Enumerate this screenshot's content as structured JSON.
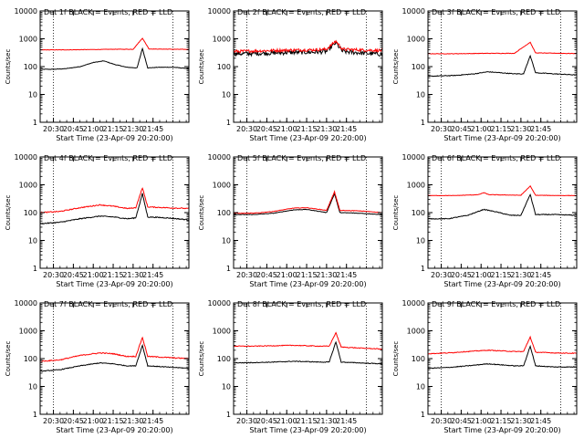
{
  "chart_data": [
    {
      "type": "line",
      "title": "Det 1f BLACK = Events, RED = LLD",
      "xlabel": "Start Time (23-Apr-09 20:20:00)",
      "ylabel": "Counts/sec",
      "ylog": true,
      "ylim": [
        1,
        10000
      ],
      "xlim": [
        0,
        112
      ],
      "xtick_labels": [
        "20:30",
        "20:45",
        "21:00",
        "21:15",
        "21:30",
        "21:45"
      ],
      "ytick_labels": [
        "1",
        "10",
        "100",
        "1000",
        "10000"
      ],
      "series": [
        {
          "color": "#000000",
          "base": 80,
          "bump": [
            45,
            2.1
          ],
          "peak": 450,
          "noise": 0.02,
          "points": [
            [
              0,
              80
            ],
            [
              10,
              80
            ],
            [
              20,
              85
            ],
            [
              30,
              100
            ],
            [
              40,
              140
            ],
            [
              48,
              160
            ],
            [
              56,
              120
            ],
            [
              65,
              95
            ],
            [
              73,
              90
            ],
            [
              77,
              450
            ],
            [
              81,
              90
            ],
            [
              90,
              95
            ],
            [
              100,
              95
            ],
            [
              112,
              85
            ]
          ]
        },
        {
          "color": "#ff0000",
          "base": 400,
          "peak": 1050,
          "noise": 0.015,
          "points": [
            [
              0,
              400
            ],
            [
              20,
              400
            ],
            [
              40,
              410
            ],
            [
              55,
              420
            ],
            [
              70,
              420
            ],
            [
              77,
              1050
            ],
            [
              82,
              430
            ],
            [
              100,
              420
            ],
            [
              112,
              415
            ]
          ]
        }
      ]
    },
    {
      "type": "line",
      "title": "Det 2f BLACK = Events, RED = LLD",
      "xlabel": "Start Time (23-Apr-09 20:20:00)",
      "ylabel": "Counts/sec",
      "ylog": true,
      "ylim": [
        1,
        10000
      ],
      "xlim": [
        0,
        112
      ],
      "xtick_labels": [
        "20:30",
        "20:45",
        "21:00",
        "21:15",
        "21:30",
        "21:45"
      ],
      "ytick_labels": [
        "1",
        "10",
        "100",
        "1000",
        "10000"
      ],
      "series": [
        {
          "color": "#000000",
          "noise": 0.18,
          "points": [
            [
              0,
              290
            ],
            [
              20,
              300
            ],
            [
              40,
              320
            ],
            [
              60,
              330
            ],
            [
              70,
              350
            ],
            [
              77,
              720
            ],
            [
              82,
              350
            ],
            [
              100,
              300
            ],
            [
              112,
              280
            ]
          ]
        },
        {
          "color": "#ff0000",
          "noise": 0.12,
          "points": [
            [
              0,
              350
            ],
            [
              20,
              370
            ],
            [
              40,
              390
            ],
            [
              60,
              400
            ],
            [
              70,
              420
            ],
            [
              77,
              830
            ],
            [
              82,
              420
            ],
            [
              100,
              390
            ],
            [
              112,
              380
            ]
          ]
        }
      ]
    },
    {
      "type": "line",
      "title": "Det 3f BLACK = Events, RED = LLD",
      "xlabel": "Start Time (23-Apr-09 20:20:00)",
      "ylabel": "Counts/sec",
      "ylog": true,
      "ylim": [
        1,
        10000
      ],
      "xlim": [
        0,
        112
      ],
      "xtick_labels": [
        "20:30",
        "20:45",
        "21:00",
        "21:15",
        "21:30",
        "21:45"
      ],
      "ytick_labels": [
        "1",
        "10",
        "100",
        "1000",
        "10000"
      ],
      "series": [
        {
          "color": "#000000",
          "noise": 0.03,
          "points": [
            [
              0,
              45
            ],
            [
              20,
              48
            ],
            [
              35,
              55
            ],
            [
              45,
              65
            ],
            [
              55,
              60
            ],
            [
              65,
              55
            ],
            [
              72,
              55
            ],
            [
              77,
              250
            ],
            [
              81,
              60
            ],
            [
              95,
              55
            ],
            [
              112,
              50
            ]
          ]
        },
        {
          "color": "#ff0000",
          "noise": 0.02,
          "points": [
            [
              0,
              290
            ],
            [
              20,
              290
            ],
            [
              45,
              300
            ],
            [
              65,
              300
            ],
            [
              77,
              750
            ],
            [
              81,
              310
            ],
            [
              100,
              300
            ],
            [
              112,
              295
            ]
          ]
        }
      ]
    },
    {
      "type": "line",
      "title": "Det 4f BLACK = Events, RED = LLD",
      "xlabel": "Start Time (23-Apr-09 20:20:00)",
      "ylabel": "Counts/sec",
      "ylog": true,
      "ylim": [
        1,
        10000
      ],
      "xlim": [
        0,
        112
      ],
      "xtick_labels": [
        "20:30",
        "20:45",
        "21:00",
        "21:15",
        "21:30",
        "21:45"
      ],
      "ytick_labels": [
        "1",
        "10",
        "100",
        "1000",
        "10000"
      ],
      "series": [
        {
          "color": "#000000",
          "noise": 0.04,
          "points": [
            [
              0,
              40
            ],
            [
              15,
              45
            ],
            [
              30,
              60
            ],
            [
              45,
              75
            ],
            [
              55,
              70
            ],
            [
              66,
              60
            ],
            [
              72,
              65
            ],
            [
              77,
              480
            ],
            [
              81,
              70
            ],
            [
              95,
              65
            ],
            [
              112,
              55
            ]
          ]
        },
        {
          "color": "#ff0000",
          "noise": 0.04,
          "points": [
            [
              0,
              100
            ],
            [
              15,
              110
            ],
            [
              30,
              150
            ],
            [
              45,
              190
            ],
            [
              55,
              170
            ],
            [
              66,
              140
            ],
            [
              72,
              150
            ],
            [
              77,
              780
            ],
            [
              81,
              160
            ],
            [
              95,
              150
            ],
            [
              112,
              140
            ]
          ]
        }
      ]
    },
    {
      "type": "line",
      "title": "Det 5f BLACK = Events, RED = LLD",
      "xlabel": "Start Time (23-Apr-09 20:20:00)",
      "ylabel": "Counts/sec",
      "ylog": true,
      "ylim": [
        1,
        10000
      ],
      "xlim": [
        0,
        112
      ],
      "xtick_labels": [
        "20:30",
        "20:45",
        "21:00",
        "21:15",
        "21:30",
        "21:45"
      ],
      "ytick_labels": [
        "1",
        "10",
        "100",
        "1000",
        "10000"
      ],
      "series": [
        {
          "color": "#000000",
          "noise": 0.02,
          "points": [
            [
              0,
              85
            ],
            [
              15,
              85
            ],
            [
              30,
              95
            ],
            [
              45,
              125
            ],
            [
              55,
              130
            ],
            [
              65,
              110
            ],
            [
              70,
              100
            ],
            [
              76,
              480
            ],
            [
              80,
              100
            ],
            [
              95,
              95
            ],
            [
              112,
              85
            ]
          ]
        },
        {
          "color": "#ff0000",
          "noise": 0.02,
          "points": [
            [
              0,
              95
            ],
            [
              15,
              95
            ],
            [
              30,
              110
            ],
            [
              45,
              145
            ],
            [
              55,
              150
            ],
            [
              65,
              130
            ],
            [
              70,
              120
            ],
            [
              76,
              560
            ],
            [
              80,
              120
            ],
            [
              95,
              115
            ],
            [
              112,
              100
            ]
          ]
        }
      ]
    },
    {
      "type": "line",
      "title": "Det 6f BLACK = Events, RED = LLD",
      "xlabel": "Start Time (23-Apr-09 20:20:00)",
      "ylabel": "Counts/sec",
      "ylog": true,
      "ylim": [
        1,
        10000
      ],
      "xlim": [
        0,
        112
      ],
      "xtick_labels": [
        "20:30",
        "20:45",
        "21:00",
        "21:15",
        "21:30",
        "21:45"
      ],
      "ytick_labels": [
        "1",
        "10",
        "100",
        "1000",
        "10000"
      ],
      "series": [
        {
          "color": "#000000",
          "noise": 0.03,
          "points": [
            [
              0,
              60
            ],
            [
              15,
              60
            ],
            [
              30,
              80
            ],
            [
              42,
              130
            ],
            [
              50,
              110
            ],
            [
              62,
              80
            ],
            [
              70,
              80
            ],
            [
              77,
              450
            ],
            [
              81,
              85
            ],
            [
              95,
              85
            ],
            [
              112,
              80
            ]
          ]
        },
        {
          "color": "#ff0000",
          "noise": 0.015,
          "points": [
            [
              0,
              410
            ],
            [
              20,
              410
            ],
            [
              38,
              440
            ],
            [
              42,
              520
            ],
            [
              46,
              440
            ],
            [
              70,
              420
            ],
            [
              77,
              900
            ],
            [
              81,
              420
            ],
            [
              100,
              410
            ],
            [
              112,
              410
            ]
          ]
        }
      ]
    },
    {
      "type": "line",
      "title": "Det 7f BLACK = Events, RED = LLD",
      "xlabel": "Start Time (23-Apr-09 20:20:00)",
      "ylabel": "Counts/sec",
      "ylog": true,
      "ylim": [
        1,
        10000
      ],
      "xlim": [
        0,
        112
      ],
      "xtick_labels": [
        "20:30",
        "20:45",
        "21:00",
        "21:15",
        "21:30",
        "21:45"
      ],
      "ytick_labels": [
        "1",
        "10",
        "100",
        "1000",
        "10000"
      ],
      "series": [
        {
          "color": "#000000",
          "noise": 0.03,
          "points": [
            [
              0,
              35
            ],
            [
              15,
              40
            ],
            [
              30,
              55
            ],
            [
              45,
              70
            ],
            [
              55,
              65
            ],
            [
              65,
              55
            ],
            [
              72,
              55
            ],
            [
              77,
              300
            ],
            [
              81,
              55
            ],
            [
              95,
              50
            ],
            [
              112,
              45
            ]
          ]
        },
        {
          "color": "#ff0000",
          "noise": 0.04,
          "points": [
            [
              0,
              80
            ],
            [
              15,
              90
            ],
            [
              30,
              130
            ],
            [
              45,
              160
            ],
            [
              55,
              150
            ],
            [
              65,
              120
            ],
            [
              72,
              120
            ],
            [
              77,
              580
            ],
            [
              81,
              120
            ],
            [
              95,
              110
            ],
            [
              112,
              100
            ]
          ]
        }
      ]
    },
    {
      "type": "line",
      "title": "Det 8f BLACK = Events, RED = LLD",
      "xlabel": "Start Time (23-Apr-09 20:20:00)",
      "ylabel": "Counts/sec",
      "ylog": true,
      "ylim": [
        1,
        10000
      ],
      "xlim": [
        0,
        112
      ],
      "xtick_labels": [
        "20:30",
        "20:45",
        "21:00",
        "21:15",
        "21:30",
        "21:45"
      ],
      "ytick_labels": [
        "1",
        "10",
        "100",
        "1000",
        "10000"
      ],
      "series": [
        {
          "color": "#000000",
          "noise": 0.03,
          "points": [
            [
              0,
              70
            ],
            [
              15,
              72
            ],
            [
              30,
              75
            ],
            [
              45,
              80
            ],
            [
              55,
              78
            ],
            [
              65,
              75
            ],
            [
              72,
              75
            ],
            [
              77,
              400
            ],
            [
              81,
              75
            ],
            [
              95,
              70
            ],
            [
              112,
              65
            ]
          ]
        },
        {
          "color": "#ff0000",
          "noise": 0.03,
          "points": [
            [
              0,
              280
            ],
            [
              15,
              280
            ],
            [
              30,
              290
            ],
            [
              45,
              300
            ],
            [
              55,
              290
            ],
            [
              65,
              280
            ],
            [
              72,
              280
            ],
            [
              77,
              850
            ],
            [
              81,
              260
            ],
            [
              95,
              240
            ],
            [
              112,
              220
            ]
          ]
        }
      ]
    },
    {
      "type": "line",
      "title": "Det 9f BLACK = Events, RED = LLD",
      "xlabel": "Start Time (23-Apr-09 20:20:00)",
      "ylabel": "Counts/sec",
      "ylog": true,
      "ylim": [
        1,
        10000
      ],
      "xlim": [
        0,
        112
      ],
      "xtick_labels": [
        "20:30",
        "20:45",
        "21:00",
        "21:15",
        "21:30",
        "21:45"
      ],
      "ytick_labels": [
        "1",
        "10",
        "100",
        "1000",
        "10000"
      ],
      "series": [
        {
          "color": "#000000",
          "noise": 0.03,
          "points": [
            [
              0,
              45
            ],
            [
              15,
              48
            ],
            [
              30,
              55
            ],
            [
              45,
              65
            ],
            [
              55,
              60
            ],
            [
              65,
              55
            ],
            [
              72,
              55
            ],
            [
              77,
              280
            ],
            [
              81,
              55
            ],
            [
              95,
              50
            ],
            [
              112,
              50
            ]
          ]
        },
        {
          "color": "#ff0000",
          "noise": 0.03,
          "points": [
            [
              0,
              150
            ],
            [
              15,
              160
            ],
            [
              30,
              180
            ],
            [
              45,
              200
            ],
            [
              55,
              190
            ],
            [
              65,
              180
            ],
            [
              72,
              180
            ],
            [
              77,
              600
            ],
            [
              81,
              170
            ],
            [
              95,
              160
            ],
            [
              112,
              155
            ]
          ]
        }
      ]
    }
  ]
}
